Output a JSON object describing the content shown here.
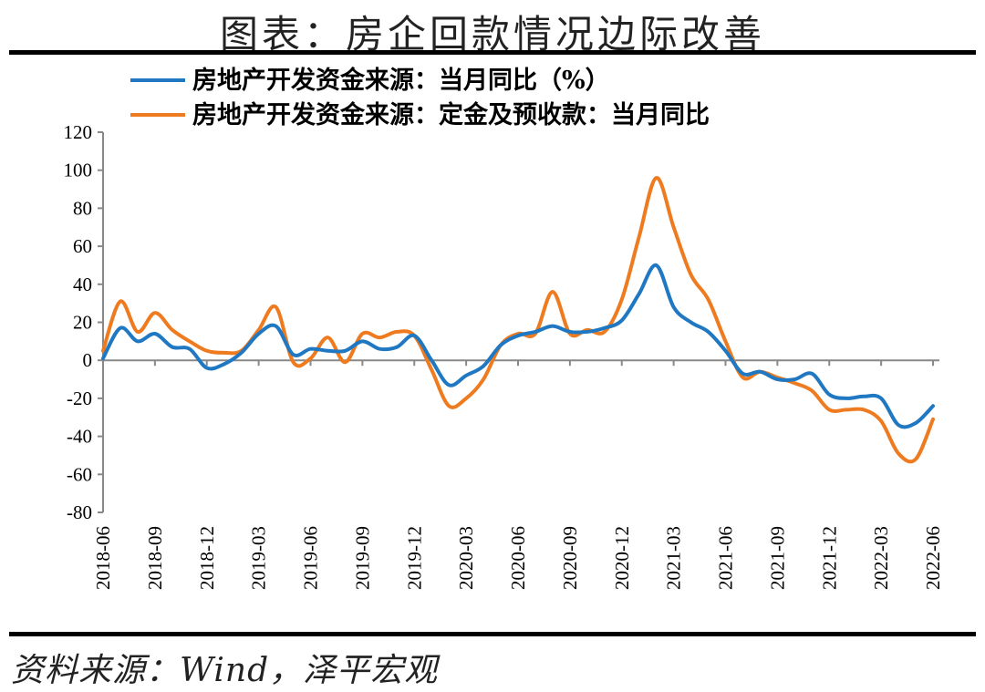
{
  "header": {
    "title": "图表：房企回款情况边际改善"
  },
  "footer": {
    "source": "资料来源：Wind，泽平宏观"
  },
  "chart_data": {
    "type": "line",
    "title": "图表：房企回款情况边际改善",
    "xlabel": "",
    "ylabel": "",
    "ylim": [
      -80,
      120
    ],
    "yticks": [
      120,
      100,
      80,
      60,
      40,
      20,
      0,
      -20,
      -40,
      -60,
      -80
    ],
    "x_tick_labels": [
      "2018-06",
      "2018-09",
      "2018-12",
      "2019-03",
      "2019-06",
      "2019-09",
      "2019-12",
      "2020-03",
      "2020-06",
      "2020-09",
      "2020-12",
      "2021-03",
      "2021-06",
      "2021-09",
      "2021-12",
      "2022-03",
      "2022-06"
    ],
    "legend_position": "top",
    "grid": false,
    "x": [
      "2018-06",
      "2018-07",
      "2018-08",
      "2018-09",
      "2018-10",
      "2018-11",
      "2018-12",
      "2019-01",
      "2019-02",
      "2019-03",
      "2019-04",
      "2019-05",
      "2019-06",
      "2019-07",
      "2019-08",
      "2019-09",
      "2019-10",
      "2019-11",
      "2019-12",
      "2020-01",
      "2020-02",
      "2020-03",
      "2020-04",
      "2020-05",
      "2020-06",
      "2020-07",
      "2020-08",
      "2020-09",
      "2020-10",
      "2020-11",
      "2020-12",
      "2021-01",
      "2021-02",
      "2021-03",
      "2021-04",
      "2021-05",
      "2021-06",
      "2021-07",
      "2021-08",
      "2021-09",
      "2021-10",
      "2021-11",
      "2021-12",
      "2022-01",
      "2022-02",
      "2022-03",
      "2022-04",
      "2022-05",
      "2022-06"
    ],
    "series": [
      {
        "name": "房地产开发资金来源：当月同比（%）",
        "color": "#1F78C1",
        "values": [
          1,
          17,
          10,
          14,
          7,
          6,
          -4,
          -2,
          4,
          14,
          18,
          3,
          6,
          5,
          5,
          10,
          6,
          7,
          13,
          0,
          -13,
          -8,
          -3,
          8,
          13,
          15,
          18,
          15,
          15,
          17,
          21,
          35,
          50,
          28,
          20,
          15,
          5,
          -7,
          -6,
          -10,
          -10,
          -7,
          -18,
          -20,
          -19,
          -20,
          -34,
          -33,
          -24
        ]
      },
      {
        "name": "房地产开发资金来源：定金及预收款：当月同比",
        "color": "#EE7B1F",
        "values": [
          5,
          31,
          15,
          25,
          16,
          10,
          5,
          4,
          5,
          16,
          28,
          -1,
          1,
          12,
          -1,
          14,
          12,
          15,
          13,
          -5,
          -24,
          -20,
          -10,
          8,
          14,
          14,
          36,
          14,
          16,
          15,
          32,
          65,
          96,
          70,
          45,
          32,
          10,
          -9,
          -6,
          -9,
          -12,
          -16,
          -26,
          -26,
          -26,
          -32,
          -49,
          -52,
          -31
        ]
      }
    ]
  }
}
